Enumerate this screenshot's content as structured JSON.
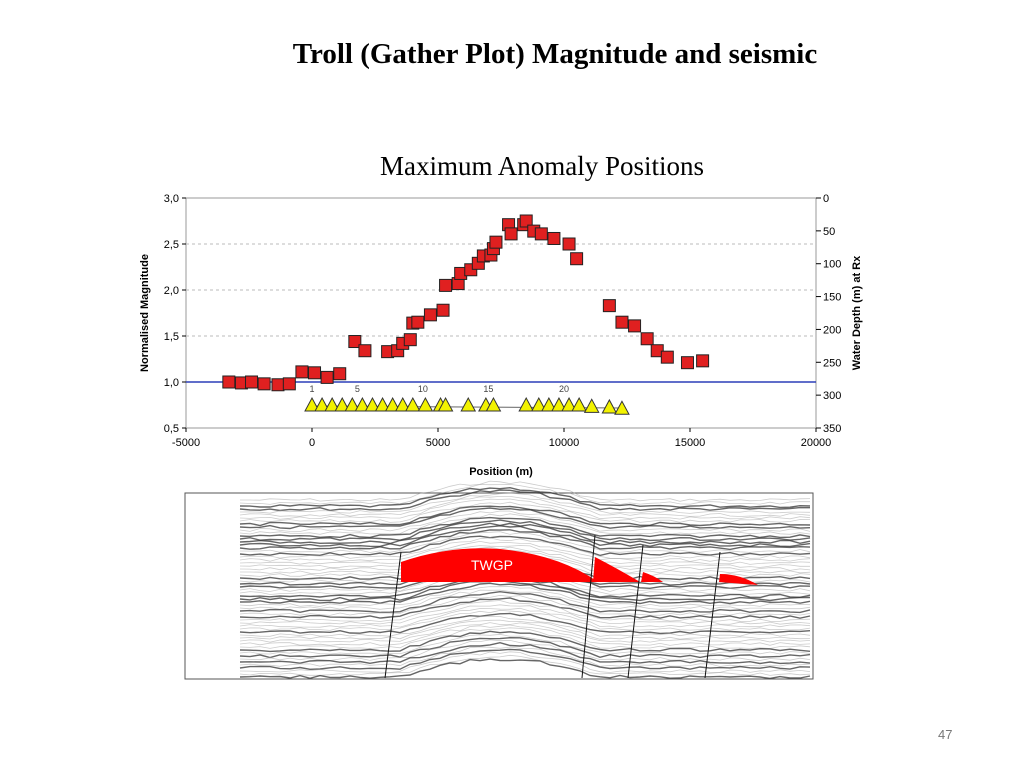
{
  "slide": {
    "title": "Troll (Gather Plot) Magnitude and seismic",
    "page_number": "47"
  },
  "chart_data": {
    "type": "scatter",
    "title": "Maximum Anomaly Positions",
    "xlabel": "Position (m)",
    "ylabel": "Normalised Magnitude",
    "y2label": "Water Depth (m) at Rx",
    "xlim": [
      -5000,
      20000
    ],
    "ylim": [
      0.5,
      3.0
    ],
    "y2lim": [
      0,
      350
    ],
    "y2_inverted": true,
    "x_ticks": [
      "-5000",
      "0",
      "5000",
      "10000",
      "15000",
      "20000"
    ],
    "y_ticks": [
      "0,5",
      "1,0",
      "1,5",
      "2,0",
      "2,5",
      "3,0"
    ],
    "y2_ticks": [
      "0",
      "50",
      "100",
      "150",
      "200",
      "250",
      "300",
      "350"
    ],
    "grid": "horizontal dashed",
    "reference_line": {
      "y": 1.0,
      "color": "#2b3fb8"
    },
    "series": [
      {
        "marker": "square",
        "color": "#e02020",
        "points": [
          [
            -3300,
            1.0
          ],
          [
            -2800,
            0.99
          ],
          [
            -2400,
            1.0
          ],
          [
            -1900,
            0.98
          ],
          [
            -1350,
            0.97
          ],
          [
            -900,
            0.98
          ],
          [
            -400,
            1.11
          ],
          [
            100,
            1.1
          ],
          [
            600,
            1.05
          ],
          [
            1100,
            1.09
          ],
          [
            1700,
            1.44
          ],
          [
            2100,
            1.34
          ],
          [
            3000,
            1.33
          ],
          [
            3400,
            1.34
          ],
          [
            3600,
            1.42
          ],
          [
            3900,
            1.46
          ],
          [
            4000,
            1.64
          ],
          [
            4200,
            1.65
          ],
          [
            4700,
            1.73
          ],
          [
            5200,
            1.78
          ],
          [
            5300,
            2.05
          ],
          [
            5800,
            2.07
          ],
          [
            5900,
            2.18
          ],
          [
            6300,
            2.22
          ],
          [
            6600,
            2.29
          ],
          [
            6800,
            2.37
          ],
          [
            7100,
            2.38
          ],
          [
            7200,
            2.45
          ],
          [
            7300,
            2.52
          ],
          [
            7800,
            2.71
          ],
          [
            7900,
            2.61
          ],
          [
            8400,
            2.71
          ],
          [
            8500,
            2.75
          ],
          [
            8800,
            2.64
          ],
          [
            9100,
            2.61
          ],
          [
            9600,
            2.56
          ],
          [
            10200,
            2.5
          ],
          [
            10500,
            2.34
          ],
          [
            11800,
            1.83
          ],
          [
            12300,
            1.65
          ],
          [
            12800,
            1.61
          ],
          [
            13300,
            1.47
          ],
          [
            13700,
            1.34
          ],
          [
            14100,
            1.27
          ],
          [
            14900,
            1.21
          ],
          [
            15500,
            1.23
          ]
        ]
      },
      {
        "marker": "triangle",
        "color": "#f2f200",
        "axis": "y2",
        "points": [
          [
            0,
            315
          ],
          [
            400,
            315
          ],
          [
            800,
            315
          ],
          [
            1200,
            315
          ],
          [
            1600,
            315
          ],
          [
            2000,
            315
          ],
          [
            2400,
            315
          ],
          [
            2800,
            315
          ],
          [
            3200,
            315
          ],
          [
            3600,
            315
          ],
          [
            4000,
            315
          ],
          [
            4500,
            315
          ],
          [
            5100,
            315
          ],
          [
            5300,
            315
          ],
          [
            6200,
            315
          ],
          [
            6900,
            315
          ],
          [
            7200,
            315
          ],
          [
            8500,
            315
          ],
          [
            9000,
            315
          ],
          [
            9400,
            315
          ],
          [
            9800,
            315
          ],
          [
            10200,
            315
          ],
          [
            10600,
            315
          ],
          [
            11100,
            317
          ],
          [
            11800,
            318
          ],
          [
            12300,
            320
          ]
        ]
      }
    ],
    "rx_labels": [
      {
        "x": 0,
        "text": "1"
      },
      {
        "x": 1800,
        "text": "5"
      },
      {
        "x": 4400,
        "text": "10"
      },
      {
        "x": 7000,
        "text": "15"
      },
      {
        "x": 10000,
        "text": "20"
      }
    ]
  },
  "seismic": {
    "label": "TWGP"
  }
}
